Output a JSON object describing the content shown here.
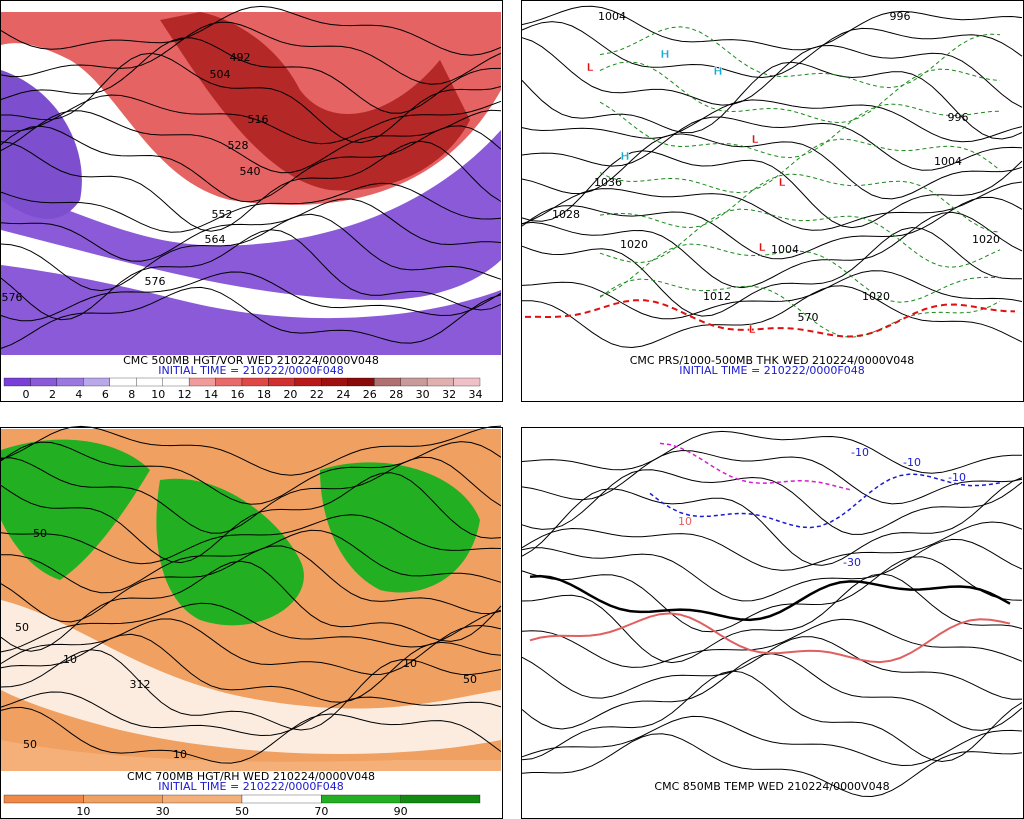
{
  "panels": [
    {
      "caption": "CMC 500MB HGT/VOR WED 210224/0000V048",
      "initial": "INITIAL TIME = 210222/0000F048",
      "colorbar": [
        0,
        2,
        4,
        6,
        8,
        10,
        12,
        14,
        16,
        18,
        20,
        22,
        24,
        26,
        28,
        30,
        32,
        34
      ],
      "labels": [
        "492",
        "504",
        "516",
        "528",
        "540",
        "552",
        "564",
        "576",
        "576"
      ]
    },
    {
      "caption": "CMC PRS/1000-500MB THK WED 210224/0000V048",
      "initial": "INITIAL TIME = 210222/0000F048",
      "labels": [
        "1004",
        "1036",
        "1028",
        "1020",
        "996",
        "996",
        "1004",
        "1020",
        "1012",
        "1020",
        "1004",
        "570",
        "H",
        "H",
        "H",
        "L",
        "L",
        "L",
        "L",
        "L"
      ]
    },
    {
      "caption": "CMC 700MB HGT/RH WED 210224/0000V048",
      "initial": "INITIAL TIME = 210222/0000F048",
      "colorbar": [
        10,
        30,
        50,
        70,
        90
      ],
      "labels": [
        "312",
        "50",
        "50",
        "10",
        "10",
        "50",
        "10",
        "50"
      ]
    },
    {
      "caption": "CMC 850MB TEMP WED 210224/0000V048",
      "labels": [
        "-10",
        "-10",
        "-10",
        "-30",
        "10"
      ]
    }
  ]
}
